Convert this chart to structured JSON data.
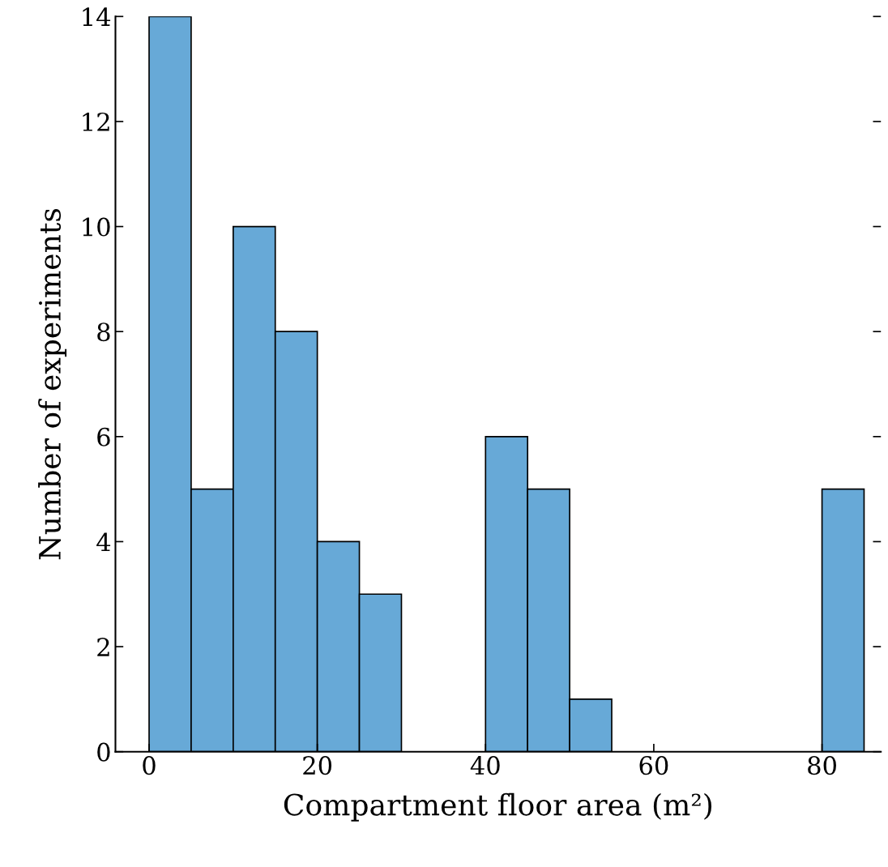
{
  "chart_data": {
    "type": "histogram",
    "xlabel": "Compartment floor area (m²)",
    "ylabel": "Number of experiments",
    "bins": [
      0,
      5,
      10,
      15,
      20,
      25,
      30,
      35,
      40,
      45,
      50,
      55,
      60,
      65,
      70,
      75,
      80,
      85
    ],
    "values": [
      14,
      5,
      10,
      8,
      4,
      3,
      0,
      0,
      6,
      5,
      1,
      0,
      0,
      0,
      0,
      0,
      5
    ],
    "color": "#67a9d7",
    "xlim": [
      -4,
      87
    ],
    "xticks": [
      0,
      20,
      40,
      60,
      80
    ],
    "ylim": [
      0,
      14
    ],
    "yticks": [
      0,
      2,
      4,
      6,
      8,
      10,
      12,
      14
    ],
    "grid": false,
    "legend": false
  }
}
